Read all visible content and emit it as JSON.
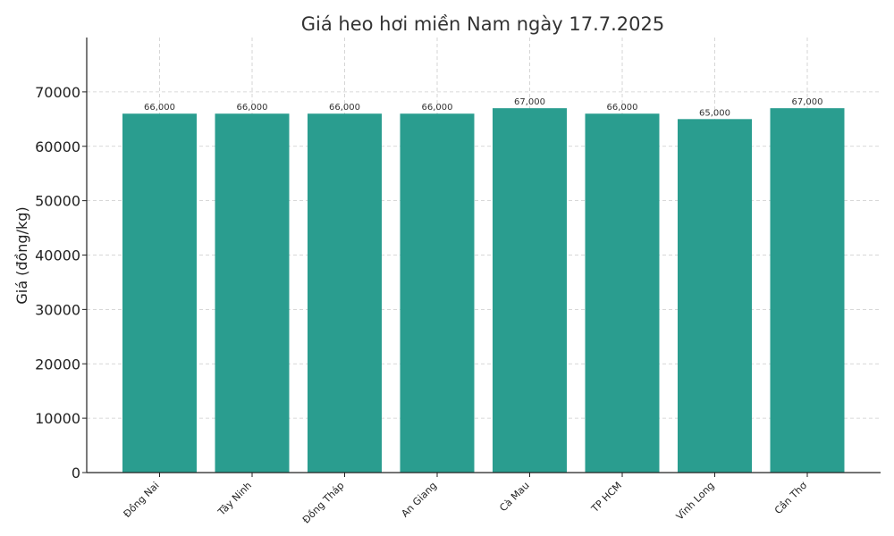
{
  "chart_data": {
    "type": "bar",
    "title": "Giá heo hơi miền Nam ngày 17.7.2025",
    "xlabel": "",
    "ylabel": "Giá (đồng/kg)",
    "categories": [
      "Đồng Nai",
      "Tây Ninh",
      "Đồng Tháp",
      "An Giang",
      "Cà Mau",
      "TP HCM",
      "Vĩnh Long",
      "Cần Thơ"
    ],
    "values": [
      66000,
      66000,
      66000,
      66000,
      67000,
      66000,
      65000,
      67000
    ],
    "data_labels": [
      "66,000",
      "66,000",
      "66,000",
      "66,000",
      "67,000",
      "66,000",
      "65,000",
      "67,000"
    ],
    "ylim": [
      0,
      80000
    ],
    "yticks": [
      0,
      10000,
      20000,
      30000,
      40000,
      50000,
      60000,
      70000
    ],
    "ytick_labels": [
      "0",
      "10000",
      "20000",
      "30000",
      "40000",
      "50000",
      "60000",
      "70000"
    ],
    "grid": true,
    "colors": {
      "bar": "#2a9d8f"
    }
  }
}
